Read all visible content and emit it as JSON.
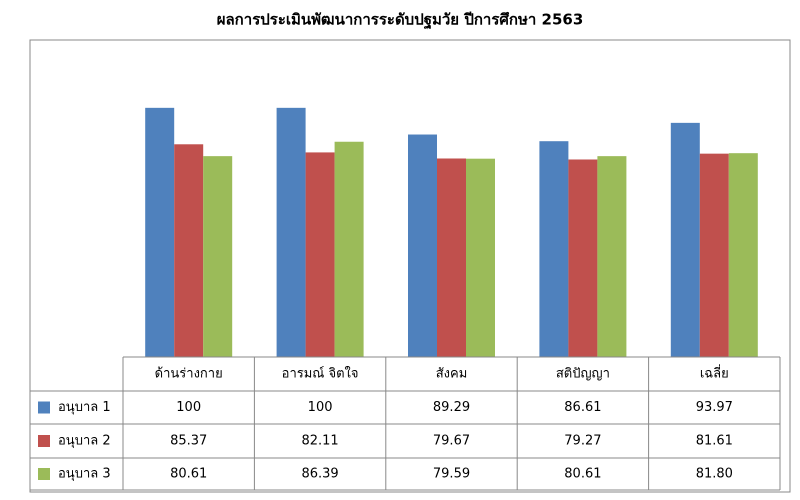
{
  "chart_data": {
    "type": "bar",
    "title": "ผลการประเมินพัฒนาการระดับปฐมวัย ปีการศึกษา 2563",
    "categories": [
      "ด้านร่างกาย",
      "อารมณ์ จิตใจ",
      "สังคม",
      "สติปัญญา",
      "เฉลี่ย"
    ],
    "series": [
      {
        "name": "อนุบาล 1",
        "color": "#4f81bd",
        "values": [
          100,
          100,
          89.29,
          86.61,
          93.97
        ]
      },
      {
        "name": "อนุบาล 2",
        "color": "#c0504d",
        "values": [
          85.37,
          82.11,
          79.67,
          79.27,
          81.61
        ]
      },
      {
        "name": "อนุบาล 3",
        "color": "#9bbb59",
        "values": [
          80.61,
          86.39,
          79.59,
          80.61,
          81.8
        ],
        "value_labels": [
          "80.61",
          "86.39",
          "79.59",
          "80.61",
          "81.80"
        ]
      }
    ],
    "ylim": [
      0,
      120
    ]
  }
}
